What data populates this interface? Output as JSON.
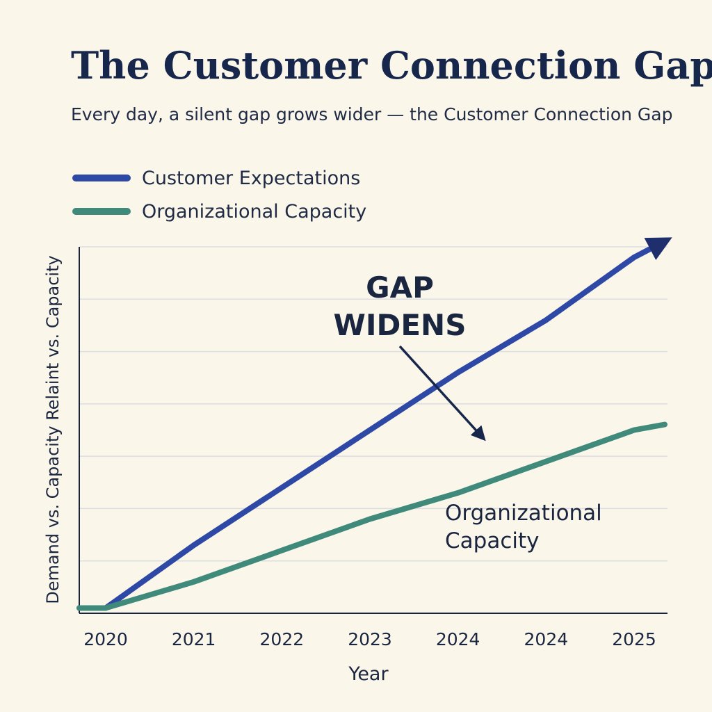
{
  "title": "The Customer Connection Gap",
  "subtitle": "Every day, a silent gap grows wider — the Customer Connection Gap",
  "colors": {
    "background": "#faf6ea",
    "expectations": "#2e48a5",
    "capacity": "#3f8a7a",
    "text": "#1a2540",
    "grid": "#dcdde3"
  },
  "chart_data": {
    "type": "line",
    "categories": [
      "2020",
      "2021",
      "2022",
      "2023",
      "2024",
      "2024",
      "2025"
    ],
    "xlabel": "Year",
    "ylabel": "Demand vs. Capacity Relaint vs. Capacity",
    "ylim": [
      0,
      7
    ],
    "grid": true,
    "legend_position": "top-left",
    "series": [
      {
        "name": "Customer Expectations",
        "values": [
          0.1,
          1.3,
          2.4,
          3.5,
          4.6,
          5.6,
          6.8
        ],
        "end_arrow": true
      },
      {
        "name": "Organizational Capacity",
        "values": [
          0.1,
          0.6,
          1.2,
          1.8,
          2.3,
          2.9,
          3.5
        ]
      }
    ],
    "annotations": {
      "gap_label": [
        "GAP",
        "WIDENS"
      ],
      "capacity_label": [
        "Organizational",
        "Capacity"
      ]
    }
  }
}
